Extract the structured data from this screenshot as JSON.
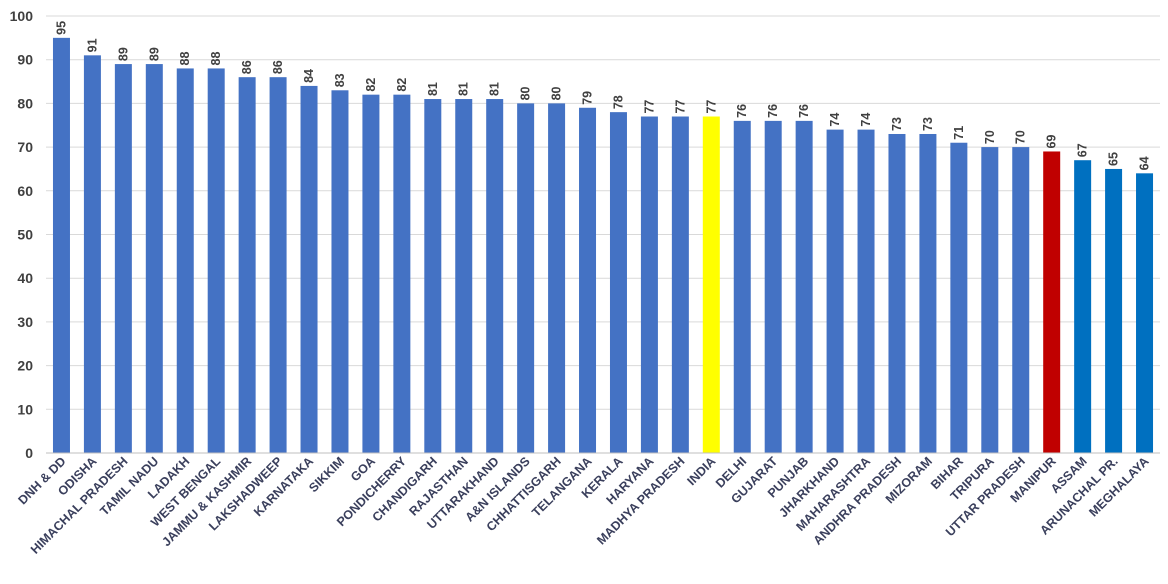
{
  "chart_data": {
    "type": "bar",
    "title": "",
    "xlabel": "",
    "ylabel": "",
    "ylim": [
      0,
      100
    ],
    "yticks": [
      0,
      10,
      20,
      30,
      40,
      50,
      60,
      70,
      80,
      90,
      100
    ],
    "grid": true,
    "legend": "none",
    "categories": [
      "DNH & DD",
      "ODISHA",
      "HIMACHAL PRADESH",
      "TAMIL NADU",
      "LADAKH",
      "WEST BENGAL",
      "JAMMU & KASHMIR",
      "LAKSHADWEEP",
      "KARNATAKA",
      "SIKKIM",
      "GOA",
      "PONDICHERRY",
      "CHANDIGARH",
      "RAJASTHAN",
      "UTTARAKHAND",
      "A&N ISLANDS",
      "CHHATTISGARH",
      "TELANGANA",
      "KERALA",
      "HARYANA",
      "MADHYA PRADESH",
      "INDIA",
      "DELHI",
      "GUJARAT",
      "PUNJAB",
      "JHARKHAND",
      "MAHARASHTRA",
      "ANDHRA PRADESH",
      "MIZORAM",
      "BIHAR",
      "TRIPURA",
      "UTTAR PRADESH",
      "MANIPUR",
      "ASSAM",
      "ARUNACHAL PR.",
      "MEGHALAYA"
    ],
    "values": [
      95,
      91,
      89,
      89,
      88,
      88,
      86,
      86,
      84,
      83,
      82,
      82,
      81,
      81,
      81,
      80,
      80,
      79,
      78,
      77,
      77,
      77,
      76,
      76,
      76,
      74,
      74,
      73,
      73,
      71,
      70,
      70,
      69,
      67,
      65,
      64
    ],
    "colors": {
      "default": "#4472c4",
      "INDIA": "#ffff00",
      "MANIPUR": "#c00000",
      "ASSAM": "#0070c0",
      "ARUNACHAL PR.": "#0070c0",
      "MEGHALAYA": "#0070c0"
    },
    "gridline_color": "#d9d9d9",
    "axis_color": "#bfbfbf"
  }
}
